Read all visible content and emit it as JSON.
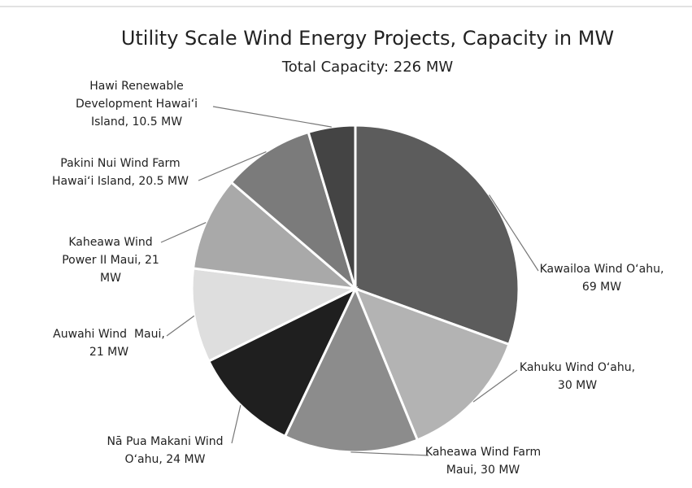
{
  "chart_data": {
    "type": "pie",
    "title": "Utility Scale Wind Energy Projects, Capacity in MW",
    "subtitle": "Total Capacity: 226 MW",
    "labels": [
      [
        "Kawailoa Wind Oʻahu,",
        "69 MW"
      ],
      [
        "Kahuku Wind Oʻahu,",
        "30 MW"
      ],
      [
        "Kaheawa Wind Farm",
        "Maui, 30 MW"
      ],
      [
        "Nā Pua Makani Wind",
        "Oʻahu, 24 MW"
      ],
      [
        "Auwahi Wind  Maui,",
        "21 MW"
      ],
      [
        "Kaheawa Wind",
        "Power II Maui, 21",
        "MW"
      ],
      [
        "Pakini Nui Wind Farm",
        "Hawaiʻi Island, 20.5 MW"
      ],
      [
        "Hawi Renewable",
        "Development Hawaiʻi",
        "Island, 10.5 MW"
      ]
    ],
    "values": [
      69,
      30,
      30,
      24,
      21,
      21,
      20.5,
      10.5
    ],
    "colors": [
      "#5c5c5c",
      "#b3b3b3",
      "#8c8c8c",
      "#1f1f1f",
      "#dedede",
      "#a9a9a9",
      "#7b7b7b",
      "#444444"
    ]
  }
}
